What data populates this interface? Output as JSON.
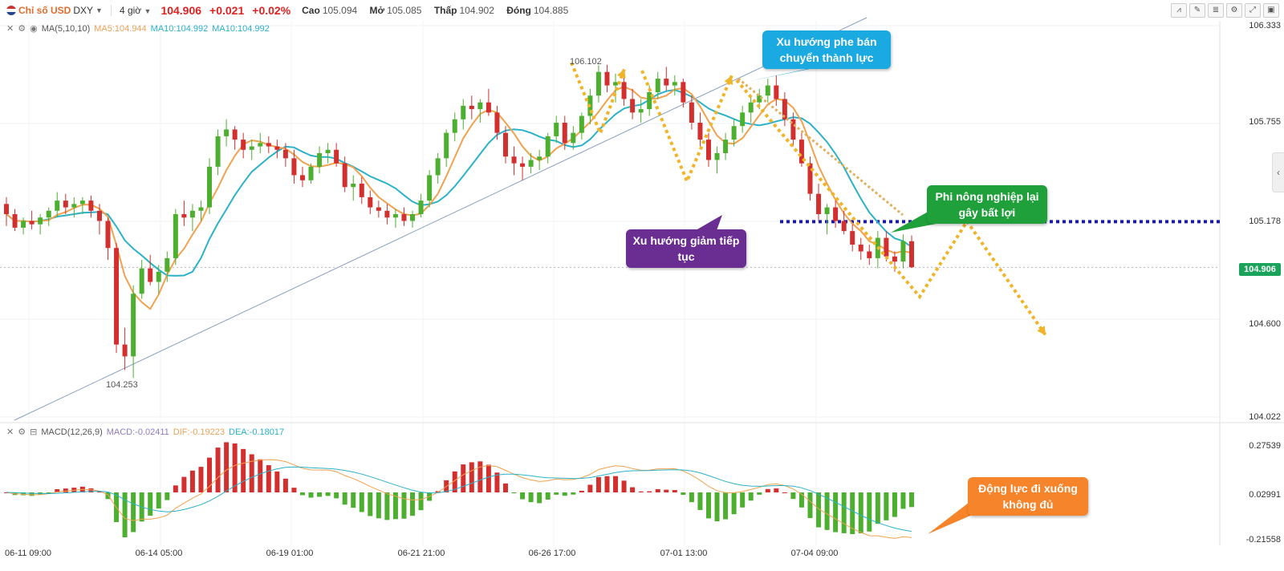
{
  "header": {
    "symbol_name": "Chỉ số USD",
    "ticker": "DXY",
    "timeframe": "4 giờ",
    "last": "104.906",
    "change": "+0.021",
    "change_pct": "+0.02%",
    "high_label": "Cao",
    "high": "105.094",
    "open_label": "Mở",
    "open": "105.085",
    "low_label": "Thấp",
    "low": "104.902",
    "close_label": "Đóng",
    "close": "104.885"
  },
  "ma_legend": {
    "label": "MA(5,10,10)",
    "ma5": "MA5:104.944",
    "ma10a": "MA10:104.992",
    "ma10b": "MA10:104.992"
  },
  "macd_legend": {
    "label": "MACD(12,26,9)",
    "macd": "MACD:-0.02411",
    "dif": "DIF:-0.19223",
    "dea": "DEA:-0.18017"
  },
  "colors": {
    "up": "#4caf2f",
    "down": "#d32f2f",
    "ma5": "#f0a24f",
    "ma10": "#2bb2c9",
    "trendline": "#8aa0c0",
    "support": "#1a1aa6",
    "arrow": "#f0b429"
  },
  "price_axis": [
    "106.333",
    "105.755",
    "105.178",
    "104.906",
    "104.600",
    "104.022"
  ],
  "macd_axis": [
    "0.27539",
    "0.02991",
    "-0.21558"
  ],
  "time_axis": [
    "06-11 09:00",
    "06-14 05:00",
    "06-19 01:00",
    "06-21 21:00",
    "06-26 17:00",
    "07-01 13:00",
    "07-04 09:00"
  ],
  "annotations": {
    "low": "104.253",
    "high": "106.102"
  },
  "callouts": {
    "sellers": "Xu hướng phe bán chuyển thành lực",
    "downtrend": "Xu hướng giảm tiếp tục",
    "nfp": "Phi nông nghiệp lại gây bất lợi",
    "momentum": "Động lực đi xuống không đủ"
  },
  "chart_data": {
    "type": "candlestick",
    "title": "Chỉ số USD DXY",
    "ylim": [
      104.022,
      106.333
    ],
    "candles": [
      [
        105.28,
        105.32,
        105.15,
        105.22
      ],
      [
        105.22,
        105.25,
        105.12,
        105.14
      ],
      [
        105.14,
        105.2,
        105.1,
        105.18
      ],
      [
        105.18,
        105.24,
        105.13,
        105.16
      ],
      [
        105.16,
        105.22,
        105.1,
        105.2
      ],
      [
        105.2,
        105.26,
        105.15,
        105.24
      ],
      [
        105.24,
        105.35,
        105.2,
        105.3
      ],
      [
        105.3,
        105.34,
        105.22,
        105.26
      ],
      [
        105.26,
        105.32,
        105.2,
        105.28
      ],
      [
        105.28,
        105.32,
        105.22,
        105.3
      ],
      [
        105.3,
        105.33,
        105.2,
        105.24
      ],
      [
        105.24,
        105.28,
        105.1,
        105.18
      ],
      [
        105.18,
        105.2,
        104.95,
        105.02
      ],
      [
        105.02,
        105.05,
        104.4,
        104.45
      ],
      [
        104.45,
        104.55,
        104.3,
        104.38
      ],
      [
        104.38,
        104.8,
        104.253,
        104.75
      ],
      [
        104.75,
        104.95,
        104.72,
        104.9
      ],
      [
        104.9,
        104.98,
        104.8,
        104.82
      ],
      [
        104.82,
        104.92,
        104.75,
        104.88
      ],
      [
        104.88,
        105.0,
        104.82,
        104.96
      ],
      [
        104.96,
        105.25,
        104.92,
        105.22
      ],
      [
        105.22,
        105.3,
        105.15,
        105.2
      ],
      [
        105.2,
        105.28,
        105.12,
        105.24
      ],
      [
        105.24,
        105.3,
        105.18,
        105.26
      ],
      [
        105.26,
        105.55,
        105.22,
        105.5
      ],
      [
        105.5,
        105.72,
        105.45,
        105.68
      ],
      [
        105.68,
        105.78,
        105.62,
        105.72
      ],
      [
        105.72,
        105.74,
        105.6,
        105.66
      ],
      [
        105.66,
        105.7,
        105.55,
        105.6
      ],
      [
        105.6,
        105.66,
        105.54,
        105.62
      ],
      [
        105.62,
        105.7,
        105.58,
        105.64
      ],
      [
        105.64,
        105.68,
        105.58,
        105.62
      ],
      [
        105.62,
        105.66,
        105.55,
        105.6
      ],
      [
        105.6,
        105.64,
        105.5,
        105.55
      ],
      [
        105.55,
        105.6,
        105.4,
        105.45
      ],
      [
        105.45,
        105.5,
        105.38,
        105.42
      ],
      [
        105.42,
        105.52,
        105.4,
        105.5
      ],
      [
        105.5,
        105.62,
        105.46,
        105.58
      ],
      [
        105.58,
        105.64,
        105.52,
        105.6
      ],
      [
        105.6,
        105.64,
        105.5,
        105.52
      ],
      [
        105.52,
        105.56,
        105.35,
        105.38
      ],
      [
        105.38,
        105.45,
        105.3,
        105.4
      ],
      [
        105.4,
        105.44,
        105.28,
        105.32
      ],
      [
        105.32,
        105.36,
        105.22,
        105.26
      ],
      [
        105.26,
        105.3,
        105.2,
        105.24
      ],
      [
        105.24,
        105.28,
        105.16,
        105.2
      ],
      [
        105.2,
        105.25,
        105.14,
        105.22
      ],
      [
        105.22,
        105.26,
        105.15,
        105.18
      ],
      [
        105.18,
        105.24,
        105.14,
        105.22
      ],
      [
        105.22,
        105.34,
        105.2,
        105.3
      ],
      [
        105.3,
        105.48,
        105.26,
        105.45
      ],
      [
        105.45,
        105.58,
        105.4,
        105.55
      ],
      [
        105.55,
        105.72,
        105.5,
        105.7
      ],
      [
        105.7,
        105.82,
        105.65,
        105.78
      ],
      [
        105.78,
        105.9,
        105.72,
        105.86
      ],
      [
        105.86,
        105.92,
        105.78,
        105.84
      ],
      [
        105.84,
        105.9,
        105.76,
        105.88
      ],
      [
        105.88,
        105.96,
        105.8,
        105.82
      ],
      [
        105.82,
        105.86,
        105.66,
        105.7
      ],
      [
        105.7,
        105.74,
        105.52,
        105.56
      ],
      [
        105.56,
        105.62,
        105.45,
        105.52
      ],
      [
        105.52,
        105.56,
        105.42,
        105.5
      ],
      [
        105.5,
        105.58,
        105.46,
        105.54
      ],
      [
        105.54,
        105.6,
        105.48,
        105.56
      ],
      [
        105.56,
        105.7,
        105.52,
        105.68
      ],
      [
        105.68,
        105.8,
        105.64,
        105.76
      ],
      [
        105.76,
        105.8,
        105.6,
        105.64
      ],
      [
        105.64,
        105.74,
        105.6,
        105.7
      ],
      [
        105.7,
        105.82,
        105.66,
        105.8
      ],
      [
        105.8,
        105.96,
        105.75,
        105.92
      ],
      [
        105.92,
        106.1,
        105.88,
        106.06
      ],
      [
        106.06,
        106.102,
        105.94,
        105.98
      ],
      [
        105.98,
        106.05,
        105.88,
        106.0
      ],
      [
        106.0,
        106.04,
        105.86,
        105.9
      ],
      [
        105.9,
        105.96,
        105.78,
        105.82
      ],
      [
        105.82,
        105.9,
        105.76,
        105.84
      ],
      [
        105.84,
        105.98,
        105.8,
        105.94
      ],
      [
        105.94,
        106.06,
        105.9,
        106.02
      ],
      [
        106.02,
        106.09,
        105.95,
        105.98
      ],
      [
        105.98,
        106.04,
        105.92,
        106.0
      ],
      [
        106.0,
        106.02,
        105.85,
        105.88
      ],
      [
        105.88,
        105.92,
        105.72,
        105.76
      ],
      [
        105.76,
        105.82,
        105.62,
        105.66
      ],
      [
        105.66,
        105.7,
        105.5,
        105.54
      ],
      [
        105.54,
        105.62,
        105.46,
        105.58
      ],
      [
        105.58,
        105.7,
        105.54,
        105.66
      ],
      [
        105.66,
        105.78,
        105.62,
        105.74
      ],
      [
        105.74,
        105.86,
        105.7,
        105.82
      ],
      [
        105.82,
        105.92,
        105.76,
        105.88
      ],
      [
        105.88,
        105.96,
        105.84,
        105.92
      ],
      [
        105.92,
        106.02,
        105.88,
        105.98
      ],
      [
        105.98,
        106.04,
        105.86,
        105.9
      ],
      [
        105.9,
        105.94,
        105.74,
        105.78
      ],
      [
        105.78,
        105.82,
        105.62,
        105.66
      ],
      [
        105.66,
        105.7,
        105.5,
        105.52
      ],
      [
        105.52,
        105.56,
        105.3,
        105.34
      ],
      [
        105.34,
        105.4,
        105.18,
        105.22
      ],
      [
        105.22,
        105.28,
        105.1,
        105.26
      ],
      [
        105.26,
        105.3,
        105.14,
        105.18
      ],
      [
        105.18,
        105.24,
        105.1,
        105.12
      ],
      [
        105.12,
        105.16,
        105.0,
        105.04
      ],
      [
        105.04,
        105.08,
        104.95,
        105.0
      ],
      [
        105.0,
        105.04,
        104.92,
        104.96
      ],
      [
        104.96,
        105.12,
        104.9,
        105.08
      ],
      [
        105.08,
        105.12,
        104.94,
        104.97
      ],
      [
        104.97,
        105.0,
        104.88,
        104.94
      ],
      [
        104.94,
        105.1,
        104.9,
        105.06
      ],
      [
        105.06,
        105.094,
        104.902,
        104.906
      ]
    ]
  }
}
